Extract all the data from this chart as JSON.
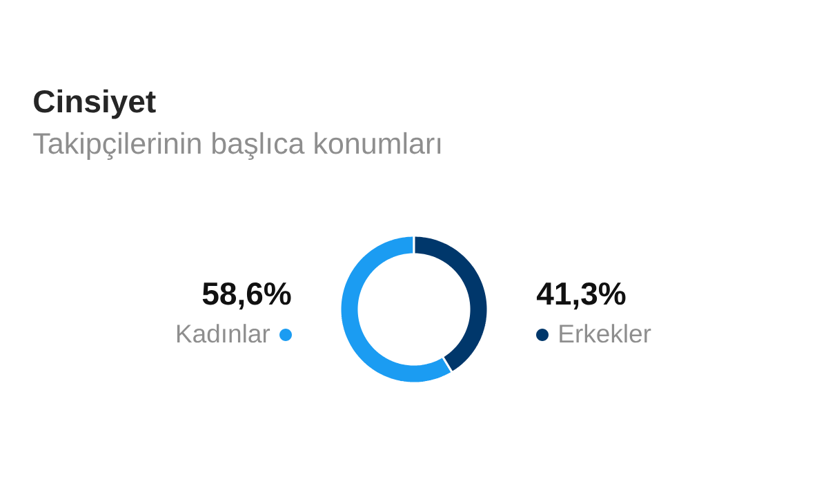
{
  "chart_data": {
    "type": "donut",
    "title": "Cinsiyet",
    "subtitle": "Takipçilerinin başlıca konumları",
    "categories": [
      "Kadınlar",
      "Erkekler"
    ],
    "values": [
      58.6,
      41.3
    ],
    "colors": [
      "#1b9cf2",
      "#00376b"
    ],
    "value_labels": [
      "58,6%",
      "41,3%"
    ]
  }
}
